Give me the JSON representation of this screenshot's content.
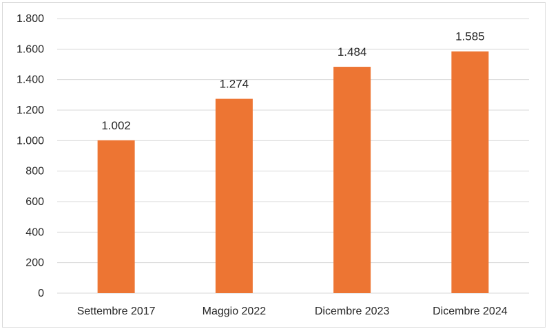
{
  "chart_data": {
    "type": "bar",
    "title": "",
    "xlabel": "",
    "ylabel": "",
    "categories": [
      "Settembre 2017",
      "Maggio 2022",
      "Dicembre 2023",
      "Dicembre 2024"
    ],
    "values": [
      1002,
      1274,
      1484,
      1585
    ],
    "value_labels": [
      "1.002",
      "1.274",
      "1.484",
      "1.585"
    ],
    "yticks": [
      0,
      200,
      400,
      600,
      800,
      1000,
      1200,
      1400,
      1600,
      1800
    ],
    "ytick_labels": [
      "0",
      "200",
      "400",
      "600",
      "800",
      "1.000",
      "1.200",
      "1.400",
      "1.600",
      "1.800"
    ],
    "ylim": [
      0,
      1800
    ],
    "grid": true,
    "legend": "none",
    "bar_color": "#ed7533",
    "grid_color": "#d9d9d9"
  }
}
